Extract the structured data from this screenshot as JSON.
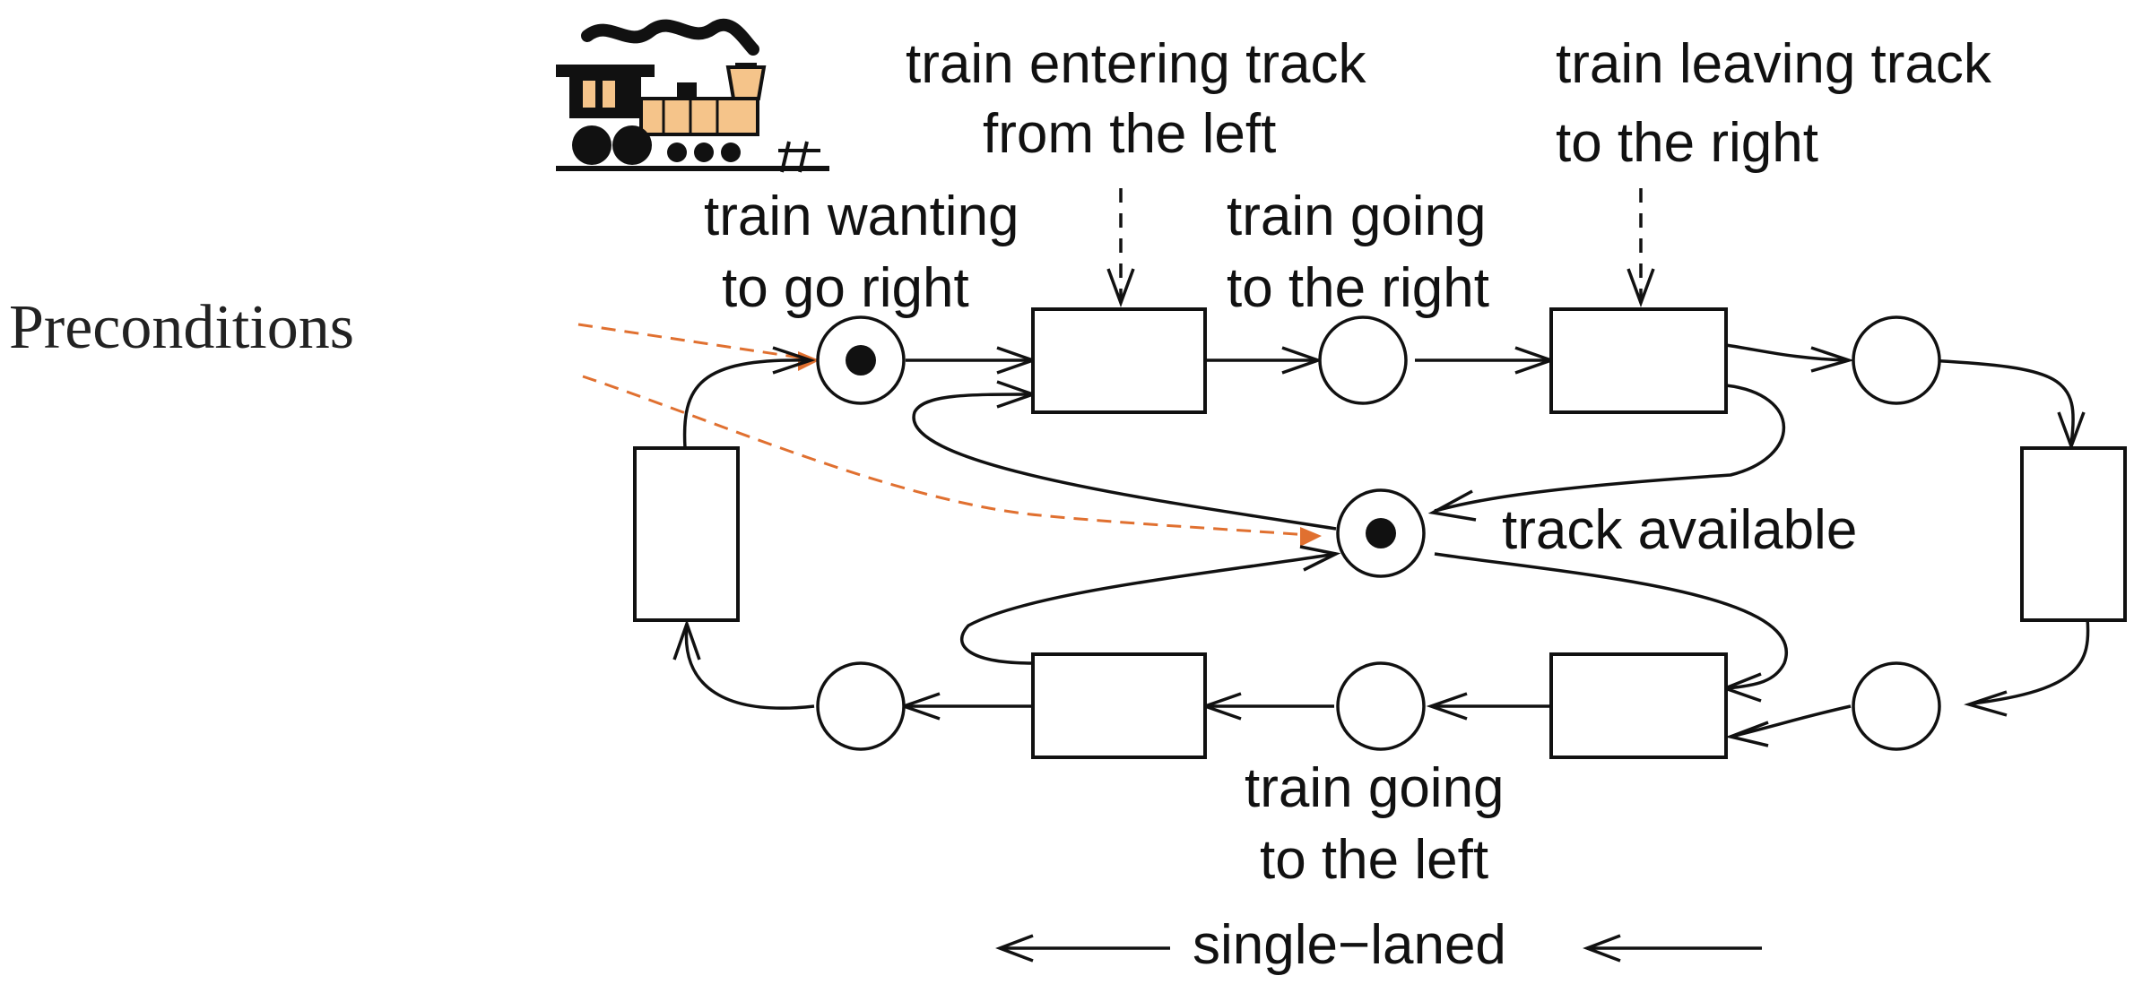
{
  "side_label": "Preconditions",
  "labels": {
    "entering": [
      "train entering track",
      "from the left"
    ],
    "leaving": [
      "train leaving track",
      "to the right"
    ],
    "wanting_right": [
      "train wanting",
      "to go right"
    ],
    "going_right": [
      "train going",
      "to the right"
    ],
    "track_available": "track available",
    "going_left": [
      "train going",
      "to the left"
    ],
    "single_laned": "single−laned"
  },
  "places": [
    {
      "name": "place-wanting-right",
      "tokens": 1
    },
    {
      "name": "place-going-right",
      "tokens": 0
    },
    {
      "name": "place-right-end",
      "tokens": 0
    },
    {
      "name": "place-track-available",
      "tokens": 1
    },
    {
      "name": "place-bottom-right",
      "tokens": 0
    },
    {
      "name": "place-going-left",
      "tokens": 0
    },
    {
      "name": "place-bottom-left",
      "tokens": 0
    }
  ],
  "colors": {
    "annotation_arrow": "#e07030",
    "train_fill": "#f5c48a",
    "ink": "#111111"
  },
  "icons": {
    "train": "steam-locomotive-icon"
  }
}
